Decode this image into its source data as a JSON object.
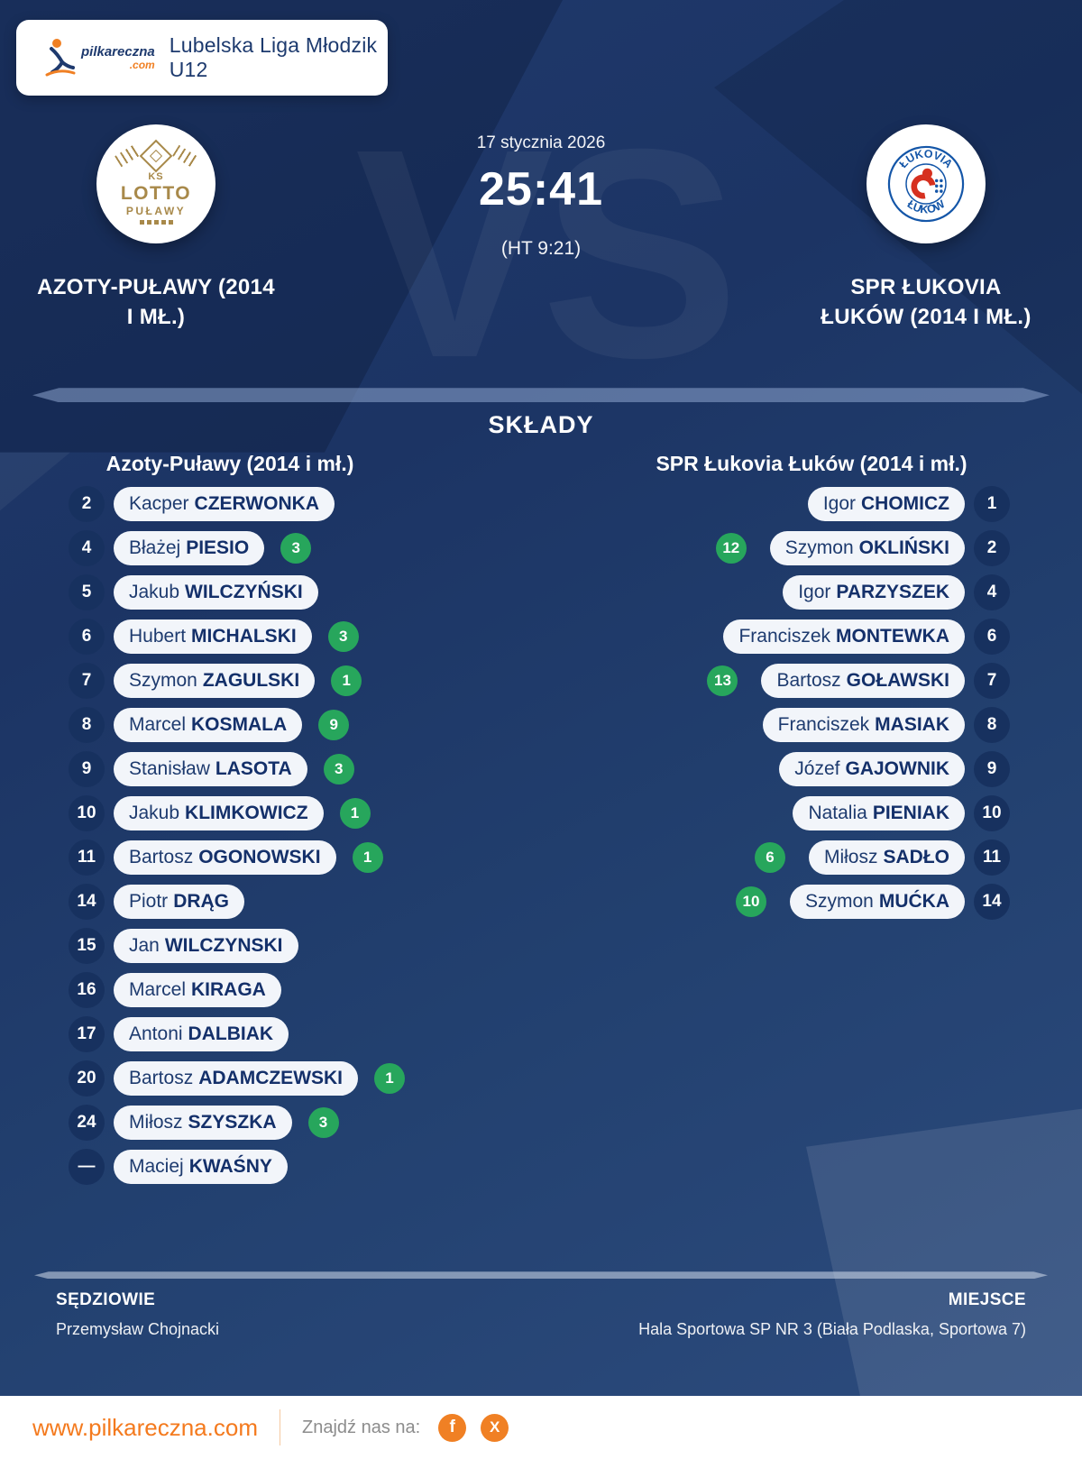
{
  "league_card": {
    "title": "Lubelska Liga Młodzik U12",
    "brand": "pilkareczna",
    "brand_tld": ".com"
  },
  "match": {
    "date": "17 stycznia 2026",
    "score": "25:41",
    "halftime": "(HT 9:21)",
    "vs_watermark": "VS",
    "home": {
      "name_lines": [
        "AZOTY-PUŁAWY (2014",
        "I MŁ.)"
      ],
      "logo": {
        "top": "KS",
        "main": "LOTTO",
        "sub": "PUŁAWY"
      }
    },
    "away": {
      "name_lines": [
        "SPR ŁUKOVIA",
        "ŁUKÓW (2014 I MŁ.)"
      ],
      "logo": {
        "arc_top": "ŁUKOVIA",
        "arc_bottom": "ŁUKÓW"
      }
    }
  },
  "lineups": {
    "title": "SKŁADY",
    "home": {
      "header": "Azoty-Puławy (2014 i mł.)",
      "players": [
        {
          "num": "2",
          "first": "Kacper",
          "last": "CZERWONKA",
          "goals": null
        },
        {
          "num": "4",
          "first": "Błażej",
          "last": "PIESIO",
          "goals": "3"
        },
        {
          "num": "5",
          "first": "Jakub",
          "last": "WILCZYŃSKI",
          "goals": null
        },
        {
          "num": "6",
          "first": "Hubert",
          "last": "MICHALSKI",
          "goals": "3"
        },
        {
          "num": "7",
          "first": "Szymon",
          "last": "ZAGULSKI",
          "goals": "1"
        },
        {
          "num": "8",
          "first": "Marcel",
          "last": "KOSMALA",
          "goals": "9"
        },
        {
          "num": "9",
          "first": "Stanisław",
          "last": "LASOTA",
          "goals": "3"
        },
        {
          "num": "10",
          "first": "Jakub",
          "last": "KLIMKOWICZ",
          "goals": "1"
        },
        {
          "num": "11",
          "first": "Bartosz",
          "last": "OGONOWSKI",
          "goals": "1"
        },
        {
          "num": "14",
          "first": "Piotr",
          "last": "DRĄG",
          "goals": null
        },
        {
          "num": "15",
          "first": "Jan",
          "last": "WILCZYNSKI",
          "goals": null
        },
        {
          "num": "16",
          "first": "Marcel",
          "last": "KIRAGA",
          "goals": null
        },
        {
          "num": "17",
          "first": "Antoni",
          "last": "DALBIAK",
          "goals": null
        },
        {
          "num": "20",
          "first": "Bartosz",
          "last": "ADAMCZEWSKI",
          "goals": "1"
        },
        {
          "num": "24",
          "first": "Miłosz",
          "last": "SZYSZKA",
          "goals": "3"
        },
        {
          "num": "—",
          "first": "Maciej",
          "last": "KWAŚNY",
          "goals": null
        }
      ]
    },
    "away": {
      "header": "SPR Łukovia Łuków (2014 i mł.)",
      "players": [
        {
          "num": "1",
          "first": "Igor",
          "last": "CHOMICZ",
          "goals": null
        },
        {
          "num": "2",
          "first": "Szymon",
          "last": "OKLIŃSKI",
          "goals": "12"
        },
        {
          "num": "4",
          "first": "Igor",
          "last": "PARZYSZEK",
          "goals": null
        },
        {
          "num": "6",
          "first": "Franciszek",
          "last": "MONTEWKA",
          "goals": null
        },
        {
          "num": "7",
          "first": "Bartosz",
          "last": "GOŁAWSKI",
          "goals": "13"
        },
        {
          "num": "8",
          "first": "Franciszek",
          "last": "MASIAK",
          "goals": null
        },
        {
          "num": "9",
          "first": "Józef",
          "last": "GAJOWNIK",
          "goals": null
        },
        {
          "num": "10",
          "first": "Natalia",
          "last": "PIENIAK",
          "goals": null
        },
        {
          "num": "11",
          "first": "Miłosz",
          "last": "SADŁO",
          "goals": "6"
        },
        {
          "num": "14",
          "first": "Szymon",
          "last": "MUĆKA",
          "goals": "10"
        }
      ]
    }
  },
  "details": {
    "referees_label": "SĘDZIOWIE",
    "referees": "Przemysław Chojnacki",
    "venue_label": "MIEJSCE",
    "venue": "Hala Sportowa SP NR 3 (Biała Podlaska, Sportowa 7)"
  },
  "footer": {
    "website": "www.pilkareczna.com",
    "find_us": "Znajdź nas na:",
    "social": [
      {
        "name": "facebook",
        "glyph": "f"
      },
      {
        "name": "x",
        "glyph": "X"
      }
    ]
  },
  "colors": {
    "accent_orange": "#F08024",
    "goal_green": "#27A65C",
    "navy_base": "#1D3565",
    "pill_bg": "#F2F5FA",
    "pill_text": "#1C3A6E"
  }
}
